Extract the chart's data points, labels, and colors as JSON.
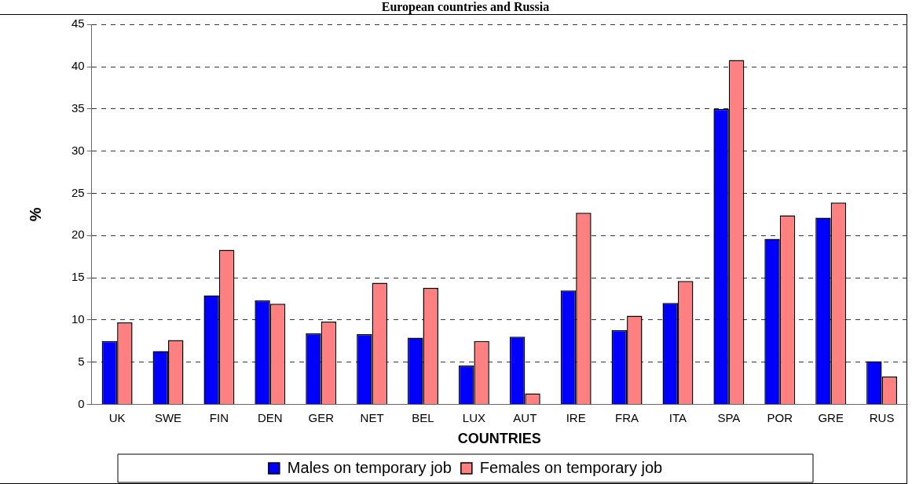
{
  "chart_data": {
    "type": "bar",
    "title": "European countries and Russia",
    "xlabel": "COUNTRIES",
    "ylabel": "%",
    "categories": [
      "UK",
      "SWE",
      "FIN",
      "DEN",
      "GER",
      "NET",
      "BEL",
      "LUX",
      "AUT",
      "IRE",
      "FRA",
      "ITA",
      "SPA",
      "POR",
      "GRE",
      "RUS"
    ],
    "series": [
      {
        "name": "Males on temporary job",
        "color": "#0000ff",
        "values": [
          7.5,
          6.3,
          12.9,
          12.3,
          8.4,
          8.3,
          7.9,
          4.6,
          8.0,
          13.5,
          8.8,
          12.0,
          35.0,
          19.6,
          22.1,
          5.1
        ]
      },
      {
        "name": "Females on temporary job",
        "color": "#ff8080",
        "values": [
          9.7,
          7.6,
          18.3,
          11.9,
          9.8,
          14.4,
          13.8,
          7.5,
          1.3,
          22.7,
          10.5,
          14.6,
          40.8,
          22.4,
          23.9,
          3.3
        ]
      }
    ],
    "ylim": [
      0,
      45
    ],
    "yticks": [
      0,
      5,
      10,
      15,
      20,
      25,
      30,
      35,
      40,
      45
    ],
    "grid": "y",
    "line_style": "dashed",
    "legend": "bottom"
  }
}
